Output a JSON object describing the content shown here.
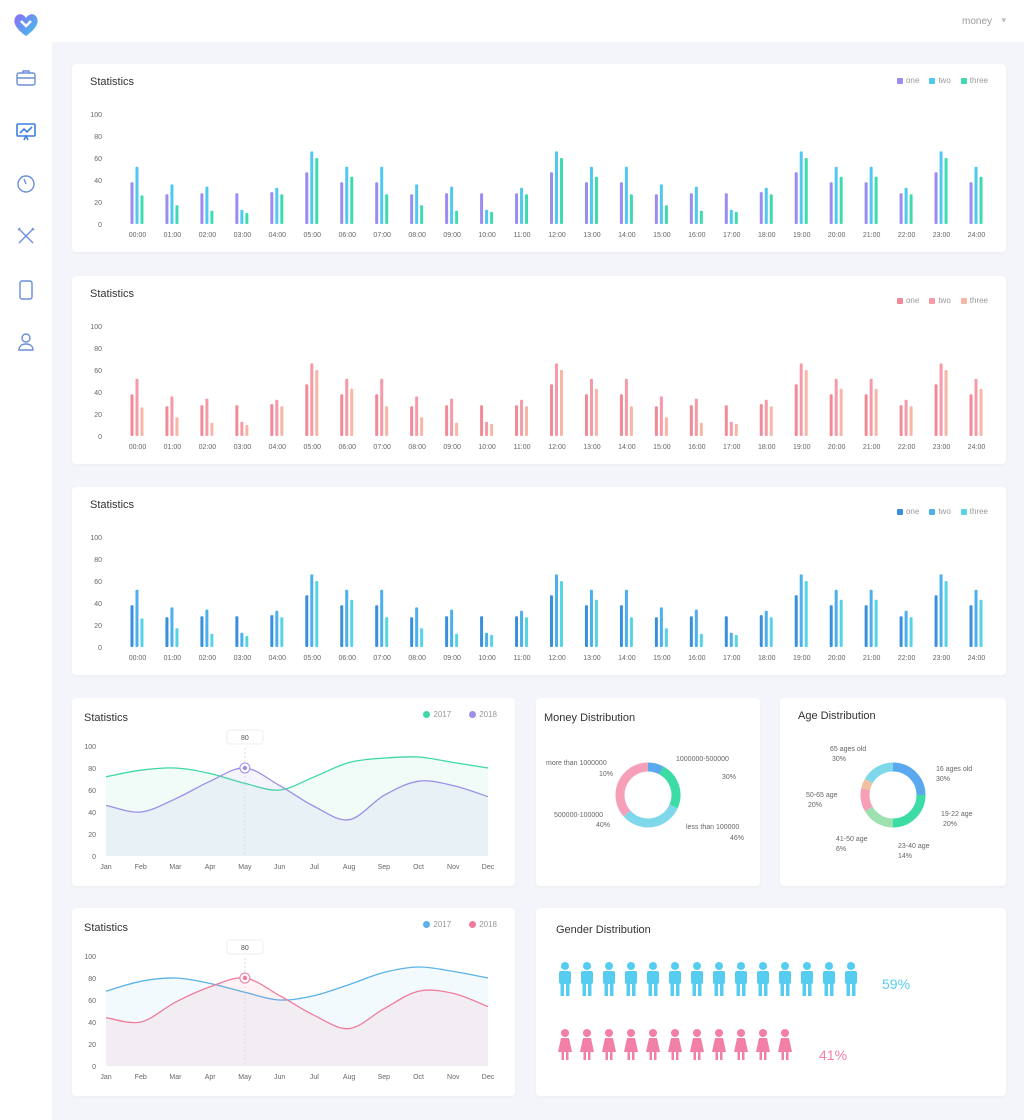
{
  "user": {
    "name": "money"
  },
  "nav": {
    "items": [
      {
        "icon": "briefcase-icon",
        "active": false
      },
      {
        "icon": "presentation-chart-icon",
        "active": true
      },
      {
        "icon": "gauge-icon",
        "active": false
      },
      {
        "icon": "tools-icon",
        "active": false
      },
      {
        "icon": "tablet-icon",
        "active": false
      },
      {
        "icon": "user-icon",
        "active": false
      }
    ]
  },
  "bar_charts": [
    {
      "title": "Statistics",
      "legend": [
        "one",
        "two",
        "three"
      ],
      "colors": [
        "#9a8cf0",
        "#50c8f0",
        "#3ddbb0"
      ]
    },
    {
      "title": "Statistics",
      "legend": [
        "one",
        "two",
        "three"
      ],
      "colors": [
        "#f08a96",
        "#f49aa8",
        "#f7b6a6"
      ]
    },
    {
      "title": "Statistics",
      "legend": [
        "one",
        "two",
        "three"
      ],
      "colors": [
        "#3a8fdc",
        "#4cb0ec",
        "#56d4e4"
      ]
    }
  ],
  "line_charts": [
    {
      "title": "Statistics",
      "legend": [
        "2017",
        "2018"
      ],
      "colors": [
        "#3dd9a0",
        "#9b8fe6"
      ],
      "tooltip": "80"
    },
    {
      "title": "Statistics",
      "legend": [
        "2017",
        "2018"
      ],
      "colors": [
        "#5ab2e6",
        "#f07c9a"
      ],
      "tooltip": "80"
    }
  ],
  "money": {
    "title": "Money Distribution",
    "labels": [
      {
        "name": "more than 1000000",
        "pct": "10%"
      },
      {
        "name": "1000000-500000",
        "pct": "30%"
      },
      {
        "name": "500000-100000",
        "pct": "40%"
      },
      {
        "name": "less than 100000",
        "pct": "46%"
      }
    ]
  },
  "age": {
    "title": "Age Distribution",
    "labels": [
      {
        "name": "65 ages old",
        "pct": "30%"
      },
      {
        "name": "16 ages old",
        "pct": "30%"
      },
      {
        "name": "50-65 age",
        "pct": "20%"
      },
      {
        "name": "19-22 age",
        "pct": "20%"
      },
      {
        "name": "41-50 age",
        "pct": "6%"
      },
      {
        "name": "23-40 age",
        "pct": "14%"
      }
    ]
  },
  "gender": {
    "title": "Gender Distribution",
    "male_pct": "59%",
    "female_pct": "41%",
    "male_count": 14,
    "female_count": 11,
    "male_color": "#56cdf0",
    "female_color": "#f27fa7"
  },
  "chart_data": [
    {
      "type": "bar",
      "title": "Statistics",
      "categories": [
        "00:00",
        "01:00",
        "02:00",
        "03:00",
        "04:00",
        "05:00",
        "06:00",
        "07:00",
        "08:00",
        "09:00",
        "10:00",
        "11:00",
        "12:00",
        "13:00",
        "14:00",
        "15:00",
        "16:00",
        "17:00",
        "18:00",
        "19:00",
        "20:00",
        "21:00",
        "22:00",
        "23:00",
        "24:00"
      ],
      "ylim": [
        0,
        100
      ],
      "yticks": [
        0,
        20,
        40,
        60,
        80,
        100
      ],
      "series": [
        {
          "name": "one",
          "values": [
            38,
            27,
            28,
            28,
            29,
            47,
            38,
            38,
            27,
            28,
            28,
            28,
            47,
            38,
            38,
            27,
            28,
            28,
            29,
            47,
            38,
            38,
            28,
            47,
            38
          ]
        },
        {
          "name": "two",
          "values": [
            52,
            36,
            34,
            13,
            33,
            66,
            52,
            52,
            36,
            34,
            13,
            33,
            66,
            52,
            52,
            36,
            34,
            13,
            33,
            66,
            52,
            52,
            33,
            66,
            52
          ]
        },
        {
          "name": "three",
          "values": [
            26,
            17,
            12,
            10,
            27,
            60,
            43,
            27,
            17,
            12,
            11,
            27,
            60,
            43,
            27,
            17,
            12,
            11,
            27,
            60,
            43,
            43,
            27,
            60,
            43
          ]
        }
      ]
    },
    {
      "type": "bar",
      "title": "Statistics",
      "categories": [
        "00:00",
        "01:00",
        "02:00",
        "03:00",
        "04:00",
        "05:00",
        "06:00",
        "07:00",
        "08:00",
        "09:00",
        "10:00",
        "11:00",
        "12:00",
        "13:00",
        "14:00",
        "15:00",
        "16:00",
        "17:00",
        "18:00",
        "19:00",
        "20:00",
        "21:00",
        "22:00",
        "23:00",
        "24:00"
      ],
      "ylim": [
        0,
        100
      ],
      "yticks": [
        0,
        20,
        40,
        60,
        80,
        100
      ],
      "series": [
        {
          "name": "one",
          "values": [
            38,
            27,
            28,
            28,
            29,
            47,
            38,
            38,
            27,
            28,
            28,
            28,
            47,
            38,
            38,
            27,
            28,
            28,
            29,
            47,
            38,
            38,
            28,
            47,
            38
          ]
        },
        {
          "name": "two",
          "values": [
            52,
            36,
            34,
            13,
            33,
            66,
            52,
            52,
            36,
            34,
            13,
            33,
            66,
            52,
            52,
            36,
            34,
            13,
            33,
            66,
            52,
            52,
            33,
            66,
            52
          ]
        },
        {
          "name": "three",
          "values": [
            26,
            17,
            12,
            10,
            27,
            60,
            43,
            27,
            17,
            12,
            11,
            27,
            60,
            43,
            27,
            17,
            12,
            11,
            27,
            60,
            43,
            43,
            27,
            60,
            43
          ]
        }
      ]
    },
    {
      "type": "bar",
      "title": "Statistics",
      "categories": [
        "00:00",
        "01:00",
        "02:00",
        "03:00",
        "04:00",
        "05:00",
        "06:00",
        "07:00",
        "08:00",
        "09:00",
        "10:00",
        "11:00",
        "12:00",
        "13:00",
        "14:00",
        "15:00",
        "16:00",
        "17:00",
        "18:00",
        "19:00",
        "20:00",
        "21:00",
        "22:00",
        "23:00",
        "24:00"
      ],
      "ylim": [
        0,
        100
      ],
      "yticks": [
        0,
        20,
        40,
        60,
        80,
        100
      ],
      "series": [
        {
          "name": "one",
          "values": [
            38,
            27,
            28,
            28,
            29,
            47,
            38,
            38,
            27,
            28,
            28,
            28,
            47,
            38,
            38,
            27,
            28,
            28,
            29,
            47,
            38,
            38,
            28,
            47,
            38
          ]
        },
        {
          "name": "two",
          "values": [
            52,
            36,
            34,
            13,
            33,
            66,
            52,
            52,
            36,
            34,
            13,
            33,
            66,
            52,
            52,
            36,
            34,
            13,
            33,
            66,
            52,
            52,
            33,
            66,
            52
          ]
        },
        {
          "name": "three",
          "values": [
            26,
            17,
            12,
            10,
            27,
            60,
            43,
            27,
            17,
            12,
            11,
            27,
            60,
            43,
            27,
            17,
            12,
            11,
            27,
            60,
            43,
            43,
            27,
            60,
            43
          ]
        }
      ]
    },
    {
      "type": "area",
      "title": "Statistics",
      "x": [
        "Jan",
        "Feb",
        "Mar",
        "Apr",
        "May",
        "Jun",
        "Jul",
        "Aug",
        "Sep",
        "Oct",
        "Nov",
        "Dec"
      ],
      "ylim": [
        0,
        100
      ],
      "yticks": [
        0,
        20,
        40,
        60,
        80,
        100
      ],
      "series": [
        {
          "name": "2017",
          "values": [
            72,
            78,
            80,
            75,
            66,
            60,
            72,
            85,
            89,
            90,
            85,
            80
          ]
        },
        {
          "name": "2018",
          "values": [
            46,
            40,
            52,
            68,
            80,
            64,
            45,
            33,
            55,
            68,
            64,
            54
          ]
        }
      ],
      "highlight": {
        "x": "May",
        "value": 80
      }
    },
    {
      "type": "area",
      "title": "Statistics",
      "x": [
        "Jan",
        "Feb",
        "Mar",
        "Apr",
        "May",
        "Jun",
        "Jul",
        "Aug",
        "Sep",
        "Oct",
        "Nov",
        "Dec"
      ],
      "ylim": [
        0,
        100
      ],
      "yticks": [
        0,
        20,
        40,
        60,
        80,
        100
      ],
      "series": [
        {
          "name": "2017",
          "values": [
            68,
            77,
            80,
            75,
            67,
            60,
            64,
            74,
            85,
            90,
            86,
            80
          ]
        },
        {
          "name": "2018",
          "values": [
            44,
            40,
            58,
            72,
            80,
            64,
            46,
            34,
            52,
            68,
            66,
            54
          ]
        }
      ],
      "highlight": {
        "x": "May",
        "value": 80
      }
    },
    {
      "type": "pie",
      "title": "Money Distribution",
      "categories": [
        "more than 1000000",
        "1000000-500000",
        "500000-100000",
        "less than 100000"
      ],
      "values": [
        10,
        30,
        40,
        46
      ],
      "colors": [
        "#5aa8ee",
        "#3ddca5",
        "#7fd8ea",
        "#f5a0b8"
      ]
    },
    {
      "type": "pie",
      "title": "Age Distribution",
      "categories": [
        "65 ages old",
        "16 ages old",
        "19-22 age",
        "23-40 age",
        "41-50 age",
        "50-65 age"
      ],
      "values": [
        30,
        30,
        20,
        14,
        6,
        20
      ],
      "colors": [
        "#5aa8ee",
        "#3ddca5",
        "#9ee0b0",
        "#f5a0b8",
        "#f0bfa0",
        "#7fd8ea"
      ]
    }
  ]
}
